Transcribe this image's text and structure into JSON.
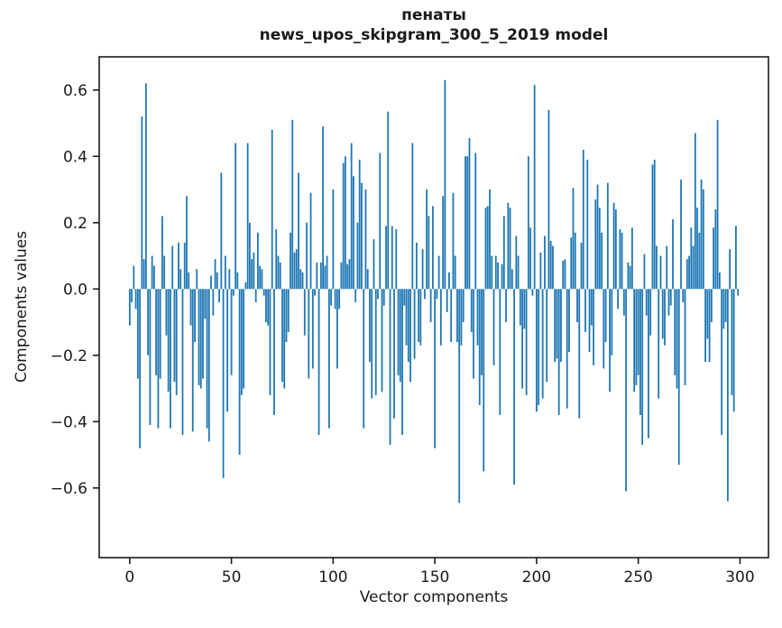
{
  "figure": {
    "title": "пенаты",
    "subtitle": "news_upos_skipgram_300_5_2019 model"
  },
  "chart_data": {
    "type": "bar",
    "title": "пенаты",
    "subtitle": "news_upos_skipgram_300_5_2019 model",
    "xlabel": "Vector components",
    "ylabel": "Components values",
    "bar_color": "#1f77b4",
    "axis_color": "#1a1a1a",
    "grid": false,
    "legend": "none",
    "xlim": [
      -15,
      314
    ],
    "ylim": [
      -0.81,
      0.7
    ],
    "xticks": [
      0,
      50,
      100,
      150,
      200,
      250,
      300
    ],
    "xtick_labels": [
      "0",
      "50",
      "100",
      "150",
      "200",
      "250",
      "300"
    ],
    "yticks": [
      0.6,
      0.4,
      0.2,
      0.0,
      -0.2,
      -0.4,
      -0.6
    ],
    "ytick_labels": [
      "0.6",
      "0.4",
      "0.2",
      "0.0",
      "−0.2",
      "−0.4",
      "−0.6"
    ],
    "n_components": 300,
    "values": [
      -0.11,
      -0.04,
      0.07,
      -0.06,
      -0.27,
      -0.48,
      0.52,
      0.09,
      0.62,
      -0.2,
      -0.41,
      0.1,
      0.07,
      -0.26,
      -0.42,
      -0.27,
      0.22,
      0.1,
      -0.14,
      -0.31,
      -0.42,
      0.13,
      -0.28,
      -0.32,
      0.14,
      0.06,
      -0.44,
      0.14,
      0.28,
      0.05,
      -0.11,
      -0.43,
      -0.16,
      0.06,
      -0.29,
      -0.3,
      -0.27,
      -0.09,
      -0.42,
      -0.46,
      0.04,
      -0.08,
      0.09,
      0.05,
      -0.04,
      0.35,
      -0.57,
      0.1,
      -0.37,
      0.06,
      -0.26,
      -0.02,
      0.44,
      0.05,
      -0.5,
      -0.32,
      -0.3,
      0.02,
      0.44,
      0.2,
      0.09,
      0.11,
      -0.04,
      0.17,
      0.07,
      0.06,
      -0.02,
      -0.1,
      -0.11,
      -0.32,
      0.48,
      -0.38,
      0.18,
      0.1,
      0.08,
      -0.28,
      -0.3,
      -0.16,
      -0.13,
      0.17,
      0.51,
      0.11,
      0.12,
      0.35,
      0.06,
      0.05,
      -0.14,
      0.2,
      -0.27,
      0.29,
      -0.24,
      -0.02,
      0.08,
      -0.44,
      0.08,
      0.49,
      0.07,
      0.1,
      -0.42,
      -0.05,
      0.3,
      -0.06,
      -0.24,
      -0.06,
      0.08,
      0.38,
      0.4,
      0.075,
      0.09,
      0.44,
      0.34,
      -0.04,
      0.2,
      0.39,
      0.32,
      -0.42,
      0.3,
      0.06,
      -0.22,
      -0.33,
      0.15,
      -0.32,
      -0.03,
      0.41,
      -0.31,
      -0.05,
      0.19,
      0.535,
      -0.47,
      0.19,
      -0.39,
      0.18,
      -0.26,
      -0.28,
      -0.44,
      -0.05,
      -0.17,
      -0.22,
      -0.28,
      0.44,
      -0.21,
      0.14,
      -0.16,
      -0.17,
      0.12,
      -0.03,
      0.3,
      0.22,
      -0.1,
      0.25,
      -0.48,
      -0.03,
      0.1,
      -0.17,
      0.28,
      0.63,
      -0.07,
      0.05,
      -0.16,
      0.29,
      0.1,
      -0.16,
      -0.645,
      -0.17,
      -0.1,
      0.4,
      0.4,
      0.455,
      -0.13,
      -0.27,
      0.41,
      -0.17,
      -0.35,
      -0.26,
      -0.55,
      0.245,
      0.25,
      0.3,
      0.1,
      -0.23,
      0.1,
      0.08,
      -0.38,
      0.075,
      0.22,
      -0.1,
      0.26,
      0.245,
      0.06,
      -0.59,
      0.16,
      0.1,
      -0.11,
      -0.3,
      -0.12,
      -0.32,
      0.4,
      0.185,
      -0.02,
      0.615,
      -0.37,
      -0.35,
      0.11,
      -0.33,
      0.16,
      -0.28,
      0.54,
      0.145,
      0.13,
      -0.22,
      -0.21,
      -0.38,
      -0.22,
      0.085,
      0.09,
      -0.36,
      -0.19,
      0.155,
      0.305,
      0.17,
      -0.1,
      -0.39,
      0.14,
      0.42,
      -0.13,
      0.39,
      -0.19,
      -0.11,
      -0.23,
      0.27,
      0.315,
      0.245,
      0.17,
      -0.24,
      -0.16,
      0.32,
      -0.31,
      -0.2,
      0.26,
      0.24,
      -0.06,
      0.18,
      0.17,
      -0.08,
      -0.61,
      0.08,
      0.07,
      0.185,
      -0.31,
      -0.29,
      -0.26,
      -0.38,
      -0.47,
      0.105,
      -0.08,
      -0.45,
      -0.14,
      0.375,
      0.39,
      0.13,
      -0.33,
      0.1,
      -0.15,
      -0.17,
      0.13,
      -0.08,
      -0.05,
      0.21,
      -0.26,
      -0.3,
      -0.53,
      0.33,
      -0.04,
      -0.29,
      0.09,
      0.1,
      0.185,
      0.13,
      0.47,
      0.245,
      0.17,
      0.33,
      0.3,
      -0.22,
      -0.15,
      -0.22,
      -0.1,
      0.185,
      0.24,
      0.51,
      0.05,
      -0.44,
      -0.12,
      -0.1,
      -0.64,
      0.12,
      -0.32,
      -0.37,
      0.19,
      -0.02
    ]
  }
}
